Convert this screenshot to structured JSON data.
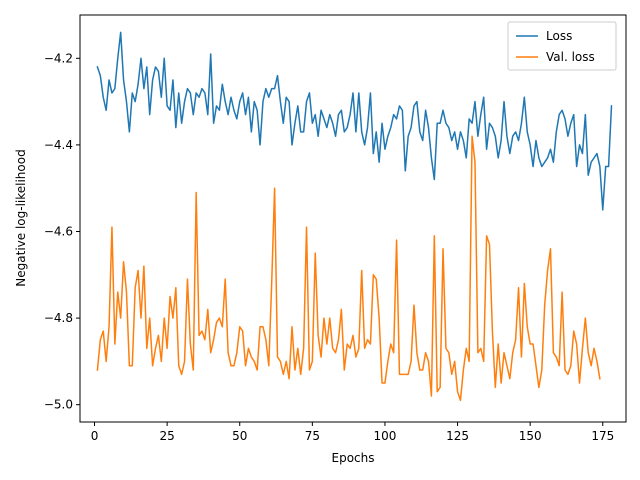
{
  "chart_data": {
    "type": "line",
    "xlabel": "Epochs",
    "ylabel": "Negative log-likelihood",
    "xlim": [
      -5,
      183
    ],
    "ylim": [
      -5.04,
      -4.1
    ],
    "xticks": [
      0,
      25,
      50,
      75,
      100,
      125,
      150,
      175
    ],
    "yticks": [
      -5.0,
      -4.8,
      -4.6,
      -4.4,
      -4.2
    ],
    "ytick_labels": [
      "−5.0",
      "−4.8",
      "−4.6",
      "−4.4",
      "−4.2"
    ],
    "grid": false,
    "legend_position": "top-right",
    "series": [
      {
        "name": "Loss",
        "color": "#1f77b4",
        "values": [
          -4.22,
          -4.24,
          -4.29,
          -4.32,
          -4.25,
          -4.28,
          -4.27,
          -4.2,
          -4.14,
          -4.25,
          -4.3,
          -4.37,
          -4.28,
          -4.3,
          -4.26,
          -4.2,
          -4.27,
          -4.22,
          -4.33,
          -4.25,
          -4.22,
          -4.23,
          -4.29,
          -4.2,
          -4.31,
          -4.32,
          -4.25,
          -4.36,
          -4.28,
          -4.35,
          -4.3,
          -4.27,
          -4.28,
          -4.33,
          -4.28,
          -4.29,
          -4.27,
          -4.28,
          -4.33,
          -4.19,
          -4.35,
          -4.31,
          -4.32,
          -4.26,
          -4.3,
          -4.33,
          -4.29,
          -4.32,
          -4.34,
          -4.3,
          -4.28,
          -4.33,
          -4.29,
          -4.37,
          -4.3,
          -4.32,
          -4.4,
          -4.3,
          -4.27,
          -4.29,
          -4.27,
          -4.27,
          -4.24,
          -4.3,
          -4.35,
          -4.29,
          -4.3,
          -4.4,
          -4.35,
          -4.31,
          -4.37,
          -4.37,
          -4.3,
          -4.28,
          -4.35,
          -4.33,
          -4.38,
          -4.32,
          -4.34,
          -4.36,
          -4.33,
          -4.35,
          -4.38,
          -4.33,
          -4.32,
          -4.37,
          -4.36,
          -4.33,
          -4.28,
          -4.37,
          -4.28,
          -4.37,
          -4.4,
          -4.36,
          -4.28,
          -4.42,
          -4.37,
          -4.44,
          -4.35,
          -4.41,
          -4.38,
          -4.36,
          -4.33,
          -4.34,
          -4.31,
          -4.32,
          -4.46,
          -4.38,
          -4.36,
          -4.31,
          -4.3,
          -4.37,
          -4.39,
          -4.32,
          -4.36,
          -4.43,
          -4.48,
          -4.35,
          -4.35,
          -4.32,
          -4.35,
          -4.36,
          -4.39,
          -4.37,
          -4.41,
          -4.37,
          -4.39,
          -4.43,
          -4.34,
          -4.35,
          -4.3,
          -4.38,
          -4.33,
          -4.29,
          -4.41,
          -4.35,
          -4.36,
          -4.38,
          -4.43,
          -4.39,
          -4.3,
          -4.38,
          -4.42,
          -4.38,
          -4.37,
          -4.39,
          -4.35,
          -4.29,
          -4.37,
          -4.4,
          -4.45,
          -4.39,
          -4.43,
          -4.45,
          -4.44,
          -4.43,
          -4.41,
          -4.44,
          -4.37,
          -4.33,
          -4.32,
          -4.34,
          -4.38,
          -4.35,
          -4.33,
          -4.45,
          -4.4,
          -4.42,
          -4.33,
          -4.47,
          -4.44,
          -4.43,
          -4.42,
          -4.45,
          -4.55,
          -4.45,
          -4.45,
          -4.31
        ]
      },
      {
        "name": "Val. loss",
        "color": "#ff7f0e",
        "values": [
          -4.92,
          -4.85,
          -4.83,
          -4.9,
          -4.82,
          -4.59,
          -4.86,
          -4.74,
          -4.8,
          -4.67,
          -4.74,
          -4.91,
          -4.91,
          -4.73,
          -4.69,
          -4.8,
          -4.68,
          -4.87,
          -4.8,
          -4.91,
          -4.87,
          -4.84,
          -4.9,
          -4.8,
          -4.87,
          -4.75,
          -4.8,
          -4.73,
          -4.91,
          -4.93,
          -4.9,
          -4.71,
          -4.86,
          -4.92,
          -4.51,
          -4.84,
          -4.83,
          -4.85,
          -4.78,
          -4.88,
          -4.85,
          -4.81,
          -4.8,
          -4.82,
          -4.71,
          -4.88,
          -4.91,
          -4.91,
          -4.88,
          -4.82,
          -4.83,
          -4.91,
          -4.87,
          -4.89,
          -4.9,
          -4.92,
          -4.82,
          -4.82,
          -4.85,
          -4.91,
          -4.72,
          -4.5,
          -4.89,
          -4.9,
          -4.93,
          -4.9,
          -4.94,
          -4.82,
          -4.92,
          -4.87,
          -4.93,
          -4.87,
          -4.59,
          -4.92,
          -4.9,
          -4.65,
          -4.84,
          -4.89,
          -4.8,
          -4.86,
          -4.8,
          -4.87,
          -4.88,
          -4.85,
          -4.78,
          -4.92,
          -4.86,
          -4.87,
          -4.84,
          -4.89,
          -4.87,
          -4.69,
          -4.87,
          -4.85,
          -4.86,
          -4.7,
          -4.71,
          -4.8,
          -4.95,
          -4.95,
          -4.9,
          -4.86,
          -4.88,
          -4.62,
          -4.93,
          -4.93,
          -4.93,
          -4.93,
          -4.9,
          -4.77,
          -4.88,
          -4.92,
          -4.92,
          -4.88,
          -4.9,
          -4.98,
          -4.61,
          -4.97,
          -4.96,
          -4.64,
          -4.87,
          -4.88,
          -4.93,
          -4.9,
          -4.97,
          -4.99,
          -4.92,
          -4.87,
          -4.9,
          -4.38,
          -4.44,
          -4.88,
          -4.87,
          -4.9,
          -4.61,
          -4.63,
          -4.83,
          -4.96,
          -4.86,
          -4.95,
          -4.88,
          -4.91,
          -4.94,
          -4.88,
          -4.85,
          -4.73,
          -4.89,
          -4.72,
          -4.82,
          -4.86,
          -4.86,
          -4.91,
          -4.96,
          -4.92,
          -4.77,
          -4.69,
          -4.64,
          -4.88,
          -4.89,
          -4.91,
          -4.74,
          -4.92,
          -4.93,
          -4.91,
          -4.83,
          -4.86,
          -4.95,
          -4.87,
          -4.8,
          -4.88,
          -4.91,
          -4.87,
          -4.9,
          -4.94
        ]
      }
    ]
  }
}
